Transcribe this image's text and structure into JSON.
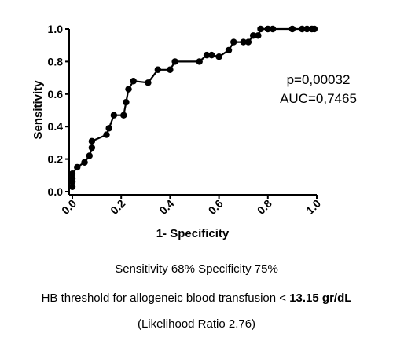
{
  "chart_data": {
    "type": "line",
    "xlabel": "1- Specificity",
    "ylabel": "Sensitivity",
    "xlim": [
      0,
      1
    ],
    "ylim": [
      0,
      1
    ],
    "x_ticks": [
      "0.0",
      "0.2",
      "0.4",
      "0.6",
      "0.8",
      "1.0"
    ],
    "y_ticks": [
      "0.0",
      "0.2",
      "0.4",
      "0.6",
      "0.8",
      "1.0"
    ],
    "grid": false,
    "annotations": [
      "p=0,00032",
      "AUC=0,7465"
    ],
    "points": [
      {
        "x": 0.0,
        "y": 0.03
      },
      {
        "x": 0.0,
        "y": 0.06
      },
      {
        "x": 0.0,
        "y": 0.08
      },
      {
        "x": 0.0,
        "y": 0.11
      },
      {
        "x": 0.02,
        "y": 0.15
      },
      {
        "x": 0.05,
        "y": 0.18
      },
      {
        "x": 0.07,
        "y": 0.22
      },
      {
        "x": 0.08,
        "y": 0.27
      },
      {
        "x": 0.08,
        "y": 0.31
      },
      {
        "x": 0.14,
        "y": 0.35
      },
      {
        "x": 0.15,
        "y": 0.39
      },
      {
        "x": 0.17,
        "y": 0.47
      },
      {
        "x": 0.21,
        "y": 0.47
      },
      {
        "x": 0.22,
        "y": 0.55
      },
      {
        "x": 0.23,
        "y": 0.63
      },
      {
        "x": 0.25,
        "y": 0.68
      },
      {
        "x": 0.31,
        "y": 0.67
      },
      {
        "x": 0.35,
        "y": 0.75
      },
      {
        "x": 0.4,
        "y": 0.75
      },
      {
        "x": 0.42,
        "y": 0.8
      },
      {
        "x": 0.52,
        "y": 0.8
      },
      {
        "x": 0.55,
        "y": 0.84
      },
      {
        "x": 0.57,
        "y": 0.84
      },
      {
        "x": 0.6,
        "y": 0.83
      },
      {
        "x": 0.64,
        "y": 0.87
      },
      {
        "x": 0.66,
        "y": 0.92
      },
      {
        "x": 0.7,
        "y": 0.92
      },
      {
        "x": 0.72,
        "y": 0.92
      },
      {
        "x": 0.74,
        "y": 0.96
      },
      {
        "x": 0.76,
        "y": 0.96
      },
      {
        "x": 0.77,
        "y": 1.0
      },
      {
        "x": 0.8,
        "y": 1.0
      },
      {
        "x": 0.82,
        "y": 1.0
      },
      {
        "x": 0.9,
        "y": 1.0
      },
      {
        "x": 0.94,
        "y": 1.0
      },
      {
        "x": 0.96,
        "y": 1.0
      },
      {
        "x": 0.98,
        "y": 1.0
      },
      {
        "x": 0.99,
        "y": 1.0
      }
    ]
  },
  "captions": {
    "line1": "Sensitivity 68% Specificity 75%",
    "line2_prefix": "HB threshold for allogeneic blood transfusion < ",
    "line2_bold": "13.15 gr/dL",
    "line3": "(Likelihood Ratio 2.76)"
  }
}
